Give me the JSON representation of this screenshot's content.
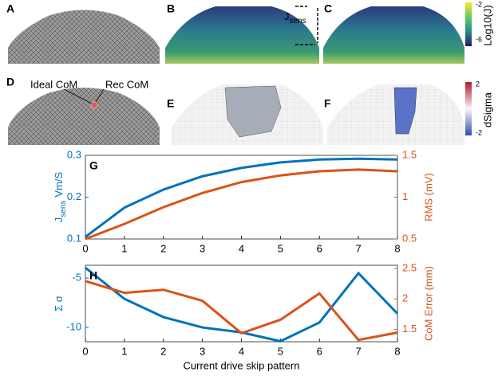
{
  "panel_labels": [
    "A",
    "B",
    "C",
    "D",
    "E",
    "F"
  ],
  "annotations": {
    "ideal_com": "Ideal CoM",
    "rec_com": "Rec CoM",
    "jsens": "J",
    "jsens_sub": "sens"
  },
  "colorbars": [
    {
      "label": "Log10(J)",
      "ticks": [
        "-2",
        "-6"
      ]
    },
    {
      "label": "dSigma",
      "ticks": [
        "2",
        "-2"
      ]
    }
  ],
  "chart_data": [
    {
      "type": "line",
      "panel_label": "G",
      "y_label": "J",
      "y_label_sub": "sens",
      "y_label_rest": "Vm/S",
      "y2_label": "RMS (mV)",
      "x": [
        0,
        1,
        2,
        3,
        4,
        5,
        6,
        7,
        8
      ],
      "xlim": [
        0,
        8
      ],
      "xticks": [
        0,
        1,
        2,
        3,
        4,
        5,
        6,
        7,
        8
      ],
      "ylim": [
        0.1,
        0.3
      ],
      "yticks": [
        0.1,
        0.2,
        0.3
      ],
      "y2lim": [
        0.5,
        1.5
      ],
      "y2ticks": [
        0.5,
        1,
        1.5
      ],
      "series": [
        {
          "color": "#0072bd",
          "values": [
            0.105,
            0.175,
            0.218,
            0.25,
            0.27,
            0.283,
            0.29,
            0.292,
            0.29
          ]
        },
        {
          "color": "#d95319",
          "axis": "y2",
          "values": [
            0.5,
            0.68,
            0.88,
            1.05,
            1.18,
            1.26,
            1.31,
            1.33,
            1.31
          ]
        }
      ]
    },
    {
      "type": "line",
      "panel_label": "H",
      "y_label": "Σ σ",
      "y2_label": "CoM Error (mm)",
      "x_label": "Current drive skip pattern",
      "x": [
        0,
        1,
        2,
        3,
        4,
        5,
        6,
        7,
        8
      ],
      "xlim": [
        0,
        8
      ],
      "xticks": [
        0,
        1,
        2,
        3,
        4,
        5,
        6,
        7,
        8
      ],
      "ylim": [
        -11.45,
        -3.7
      ],
      "yticks": [
        -5,
        -10
      ],
      "y2lim": [
        1.3,
        2.55
      ],
      "y2ticks": [
        1.5,
        2,
        2.5
      ],
      "series": [
        {
          "color": "#0072bd",
          "values": [
            -3.95,
            -7.1,
            -8.95,
            -10,
            -10.5,
            -11.4,
            -9.5,
            -4.5,
            -8.6
          ]
        },
        {
          "color": "#d95319",
          "axis": "y2",
          "values": [
            2.29,
            2.1,
            2.15,
            1.97,
            1.44,
            1.66,
            2.09,
            1.33,
            1.45
          ]
        }
      ]
    }
  ]
}
